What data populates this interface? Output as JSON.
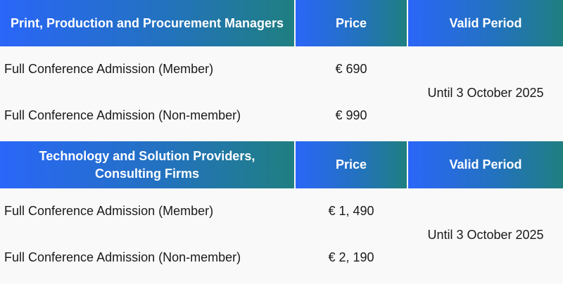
{
  "sections": [
    {
      "header": {
        "category": "Print, Production and Procurement Managers",
        "price": "Price",
        "period": "Valid Period"
      },
      "rows": [
        {
          "name": "Full Conference Admission (Member)",
          "price": "€ 690"
        },
        {
          "name": "Full Conference Admission (Non-member)",
          "price": "€ 990"
        }
      ],
      "valid_until": "Until 3 October 2025"
    },
    {
      "header": {
        "category": "Technology and Solution Providers, Consulting Firms",
        "price": "Price",
        "period": "Valid Period"
      },
      "rows": [
        {
          "name": "Full Conference Admission (Member)",
          "price": "€ 1, 490"
        },
        {
          "name": "Full Conference Admission (Non-member)",
          "price": "€ 2, 190"
        }
      ],
      "valid_until": "Until 3 October 2025"
    }
  ],
  "colors": {
    "header_gradient_start": "#2a66f8",
    "header_gradient_end": "#1f7f80",
    "body_bg": "#f9f9f9"
  }
}
